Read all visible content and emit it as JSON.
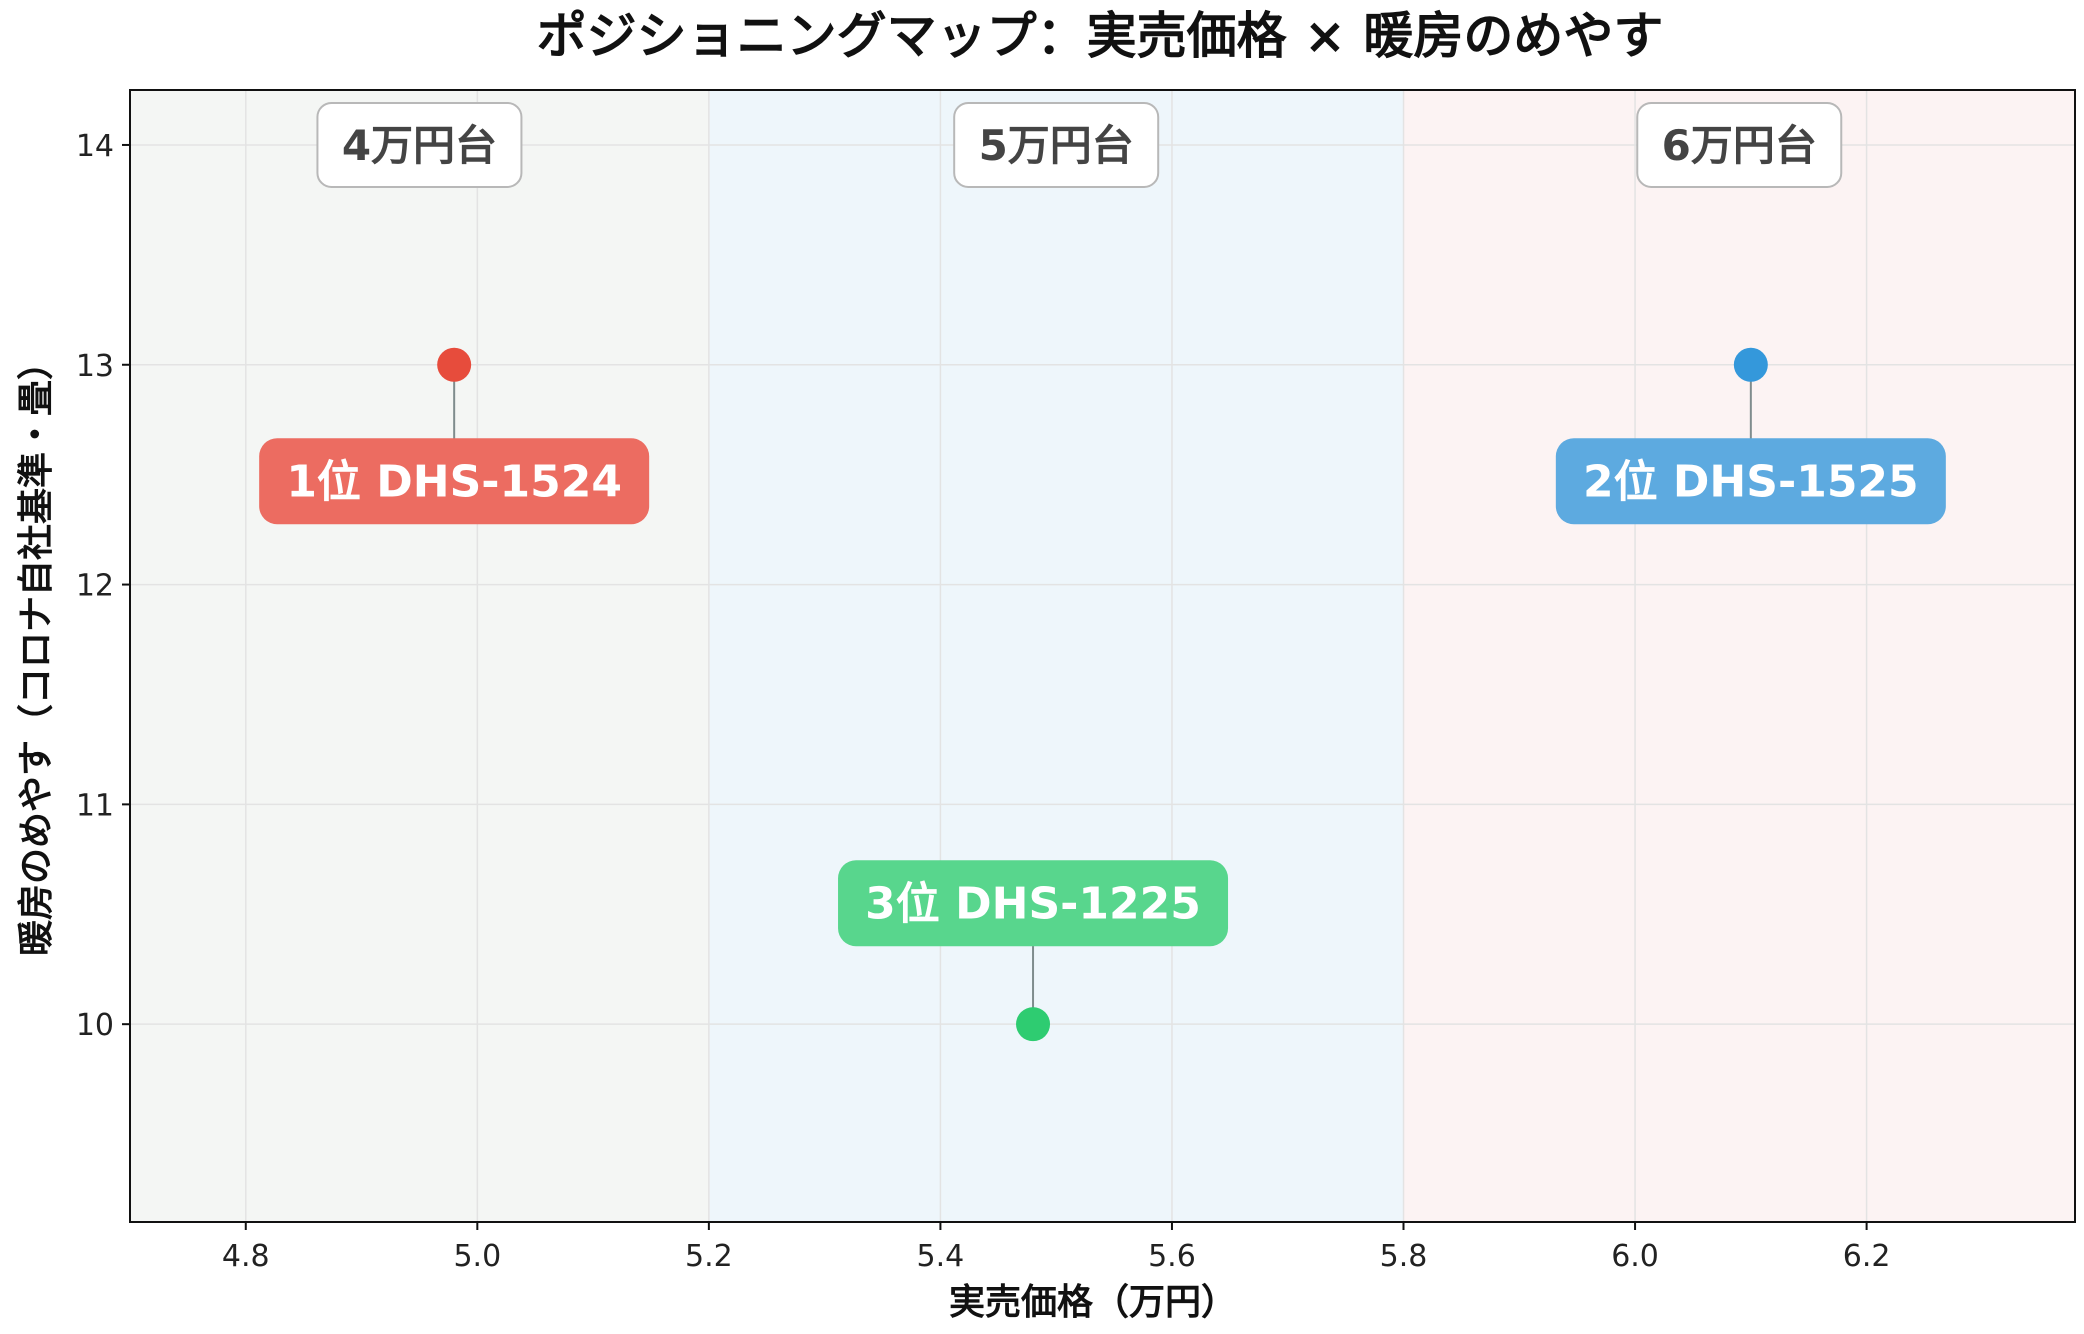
{
  "chart_data": {
    "type": "scatter",
    "title": "ポジショニングマップ：実売価格 × 暖房のめやす",
    "xlabel": "実売価格（万円）",
    "ylabel": "暖房のめやす（コロナ自社基準・畳）",
    "xlim": [
      4.7,
      6.38
    ],
    "ylim": [
      9.1,
      14.25
    ],
    "xticks": [
      4.8,
      5.0,
      5.2,
      5.4,
      5.6,
      5.8,
      6.0,
      6.2
    ],
    "xtick_labels": [
      "4.8",
      "5.0",
      "5.2",
      "5.4",
      "5.6",
      "5.8",
      "6.0",
      "6.2"
    ],
    "yticks": [
      10,
      11,
      12,
      13,
      14
    ],
    "ytick_labels": [
      "10",
      "11",
      "12",
      "13",
      "14"
    ],
    "grid": true,
    "bands": [
      {
        "label": "4万円台",
        "x_from": 4.7,
        "x_to": 5.2,
        "color": "#f4f6f4",
        "label_x": 4.95,
        "label_y": 14.0
      },
      {
        "label": "5万円台",
        "x_from": 5.2,
        "x_to": 5.8,
        "color": "#eef6fb",
        "label_x": 5.5,
        "label_y": 14.0
      },
      {
        "label": "6万円台",
        "x_from": 5.8,
        "x_to": 6.38,
        "color": "#fcf3f3",
        "label_x": 6.09,
        "label_y": 14.0
      }
    ],
    "points": [
      {
        "label": "1位 DHS-1524",
        "x": 4.98,
        "y": 13,
        "color": "#e74c3c",
        "label_color": "#ec6c61",
        "label_y": 12.47
      },
      {
        "label": "2位 DHS-1525",
        "x": 6.1,
        "y": 13,
        "color": "#3498db",
        "label_color": "#5daae0",
        "label_y": 12.47
      },
      {
        "label": "3位 DHS-1225",
        "x": 5.48,
        "y": 10,
        "color": "#2ecc71",
        "label_color": "#58d68d",
        "label_y": 10.55
      }
    ]
  }
}
